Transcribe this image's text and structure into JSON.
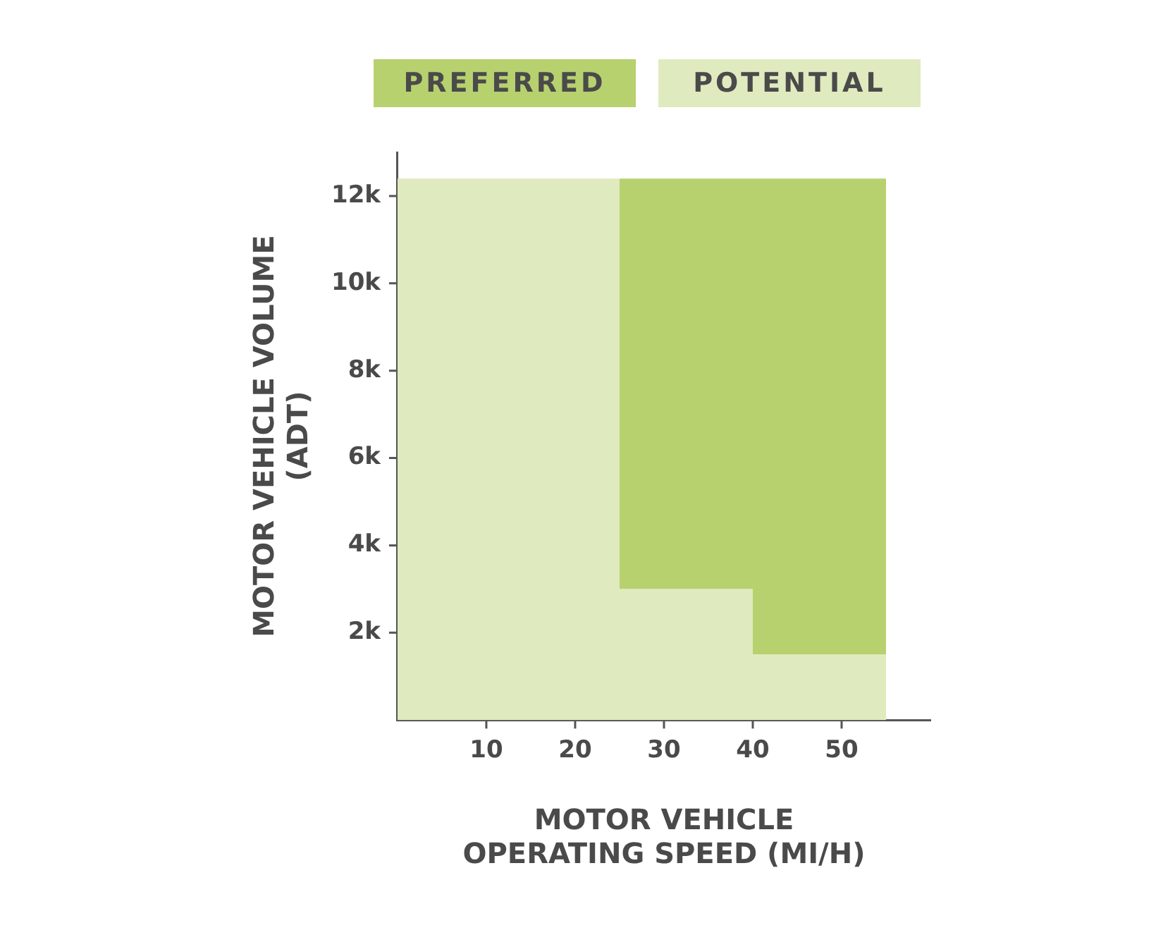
{
  "chart_data": {
    "type": "area",
    "stacked": true,
    "xlabel": "MOTOR VEHICLE\nOPERATING SPEED (MI/H)",
    "ylabel": "MOTOR VEHICLE VOLUME\n(ADT)",
    "x": [
      0,
      25,
      25,
      40,
      40,
      55
    ],
    "series": [
      {
        "name": "POTENTIAL",
        "color": "#dfeabf",
        "values": [
          12400,
          12400,
          3000,
          3000,
          1500,
          1500
        ]
      },
      {
        "name": "PREFERRED",
        "color": "#b7d16f",
        "values": [
          0,
          0,
          9400,
          9400,
          10900,
          10900
        ]
      }
    ],
    "xlim": [
      0,
      60
    ],
    "xticks": [
      10,
      20,
      30,
      40,
      50
    ],
    "ylim": [
      0,
      13000
    ],
    "yticks": [
      {
        "value": 2000,
        "label": "2k"
      },
      {
        "value": 4000,
        "label": "4k"
      },
      {
        "value": 6000,
        "label": "6k"
      },
      {
        "value": 8000,
        "label": "8k"
      },
      {
        "value": 10000,
        "label": "10k"
      },
      {
        "value": 12000,
        "label": "12k"
      }
    ],
    "grid": false,
    "legend": "top"
  }
}
